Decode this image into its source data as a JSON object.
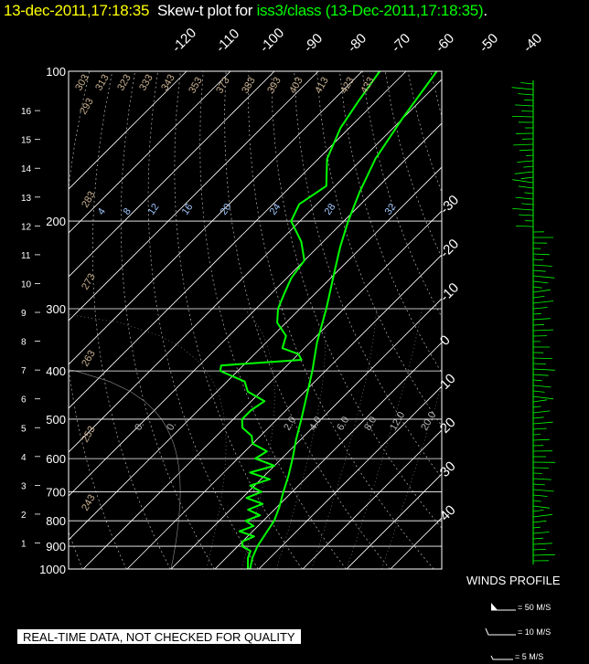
{
  "header": {
    "time": "13-dec-2011,17:18:35",
    "plot_label": "Skew-t plot for",
    "station": "iss3/class",
    "station_time": "(13-Dec-2011,17:18:35)",
    "period": "."
  },
  "notice": "REAL-TIME DATA, NOT CHECKED FOR QUALITY",
  "winds_profile": {
    "label": "WINDS PROFILE",
    "legend": [
      "= 50 M/S",
      "= 10 M/S",
      "= 5 M/S"
    ]
  },
  "colors": {
    "title": "#ffff00",
    "station": "#00ff00",
    "trace": "#00ff00",
    "grid": "#ffffff",
    "dry": "#c8b090",
    "mix": "#a0c8ff"
  },
  "chart_data": {
    "type": "line",
    "title": "Skew-t plot for iss3/class (13-Dec-2011,17:18:35)",
    "pressure_ticks": [
      "100",
      "200",
      "300",
      "400",
      "500",
      "600",
      "700",
      "800",
      "900",
      "1000"
    ],
    "height_ticks": [
      "1",
      "2",
      "3",
      "4",
      "5",
      "6",
      "7",
      "8",
      "9",
      "10",
      "11",
      "12",
      "13",
      "14",
      "15",
      "16"
    ],
    "top_temp_ticks": [
      "-120",
      "-110",
      "-100",
      "-90",
      "-80",
      "-70",
      "-60",
      "-50",
      "-40"
    ],
    "right_temp_ticks": [
      "-30",
      "-20",
      "-10",
      "0",
      "10",
      "20",
      "30",
      "40"
    ],
    "dry_adiabat_labels": [
      "243",
      "253",
      "263",
      "273",
      "283",
      "293",
      "303",
      "313",
      "323",
      "333",
      "343",
      "353",
      "373",
      "383",
      "393",
      "403",
      "413",
      "423",
      "433"
    ],
    "mixing_ratio_labels": [
      "4",
      "8",
      "12",
      "16",
      "20",
      "24",
      "28",
      "32"
    ],
    "moist_labels": [
      "0.",
      "0.",
      "2.0",
      "4.0",
      "6.0",
      "8.0",
      "12.0",
      "20.0"
    ],
    "series": [
      {
        "name": "Temperature",
        "points": [
          [
            1000,
            8.0
          ],
          [
            950,
            6.0
          ],
          [
            900,
            4.5
          ],
          [
            850,
            3.5
          ],
          [
            800,
            2.5
          ],
          [
            750,
            0.5
          ],
          [
            700,
            -2.0
          ],
          [
            650,
            -4.5
          ],
          [
            600,
            -7.5
          ],
          [
            550,
            -11.0
          ],
          [
            500,
            -14.5
          ],
          [
            450,
            -18.5
          ],
          [
            400,
            -23.0
          ],
          [
            350,
            -28.5
          ],
          [
            300,
            -34.0
          ],
          [
            250,
            -41.0
          ],
          [
            225,
            -45.0
          ],
          [
            200,
            -49.0
          ],
          [
            175,
            -53.0
          ],
          [
            150,
            -57.0
          ],
          [
            125,
            -60.0
          ],
          [
            100,
            -63.0
          ]
        ]
      },
      {
        "name": "Dewpoint",
        "points": [
          [
            1000,
            7.5
          ],
          [
            950,
            5.0
          ],
          [
            920,
            4.0
          ],
          [
            900,
            1.0
          ],
          [
            880,
            0.0
          ],
          [
            860,
            1.5
          ],
          [
            840,
            -3.0
          ],
          [
            820,
            -1.0
          ],
          [
            800,
            -4.0
          ],
          [
            780,
            -2.0
          ],
          [
            760,
            -6.0
          ],
          [
            740,
            -4.0
          ],
          [
            720,
            -9.0
          ],
          [
            700,
            -7.0
          ],
          [
            680,
            -11.0
          ],
          [
            660,
            -8.0
          ],
          [
            640,
            -14.0
          ],
          [
            620,
            -10.0
          ],
          [
            600,
            -16.0
          ],
          [
            580,
            -15.0
          ],
          [
            560,
            -20.0
          ],
          [
            540,
            -22.0
          ],
          [
            520,
            -26.0
          ],
          [
            500,
            -28.0
          ],
          [
            480,
            -28.0
          ],
          [
            460,
            -27.0
          ],
          [
            440,
            -33.0
          ],
          [
            420,
            -36.0
          ],
          [
            400,
            -44.0
          ],
          [
            390,
            -45.0
          ],
          [
            380,
            -28.0
          ],
          [
            370,
            -30.0
          ],
          [
            360,
            -35.0
          ],
          [
            340,
            -37.0
          ],
          [
            320,
            -42.0
          ],
          [
            300,
            -45.0
          ],
          [
            280,
            -47.0
          ],
          [
            260,
            -49.0
          ],
          [
            240,
            -50.0
          ],
          [
            220,
            -55.0
          ],
          [
            200,
            -62.0
          ],
          [
            185,
            -64.0
          ],
          [
            170,
            -62.0
          ],
          [
            150,
            -68.0
          ],
          [
            130,
            -72.0
          ],
          [
            115,
            -74.0
          ],
          [
            100,
            -76.0
          ]
        ]
      }
    ],
    "xlim": [
      -40,
      45
    ],
    "ylim": [
      1000,
      100
    ],
    "yscale": "log"
  }
}
